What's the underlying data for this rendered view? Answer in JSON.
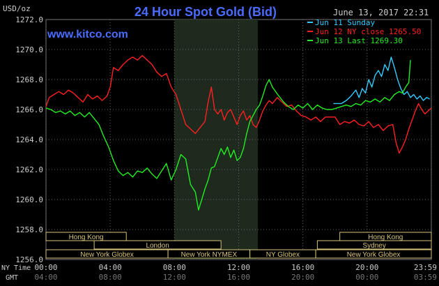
{
  "chart_data": {
    "type": "line",
    "title": "24 Hour Spot Gold (Bid)",
    "watermark": "www.kitco.com",
    "timestamp": "June 13, 2017 22:31",
    "y_unit_label": "USD/oz",
    "ylim": [
      1256.0,
      1272.0
    ],
    "y_ticks": [
      "1256.0",
      "1258.0",
      "1260.0",
      "1262.0",
      "1264.0",
      "1266.0",
      "1268.0",
      "1270.0",
      "1272.0"
    ],
    "x_range_hours": [
      0,
      24
    ],
    "x_row1_label": "NY Time",
    "x_row2_label": "GMT",
    "x_ticks_ny": [
      "00:00",
      "04:00",
      "08:00",
      "12:00",
      "16:00",
      "20:00",
      "23:59"
    ],
    "x_ticks_gmt": [
      "04:00",
      "08:00",
      "12:00",
      "16:00",
      "20:00",
      "00:00",
      "03:59"
    ],
    "shaded_region_hours": [
      8.0,
      13.2
    ],
    "legend": [
      {
        "label": "Jun 11 Sunday",
        "color": "#33ccff"
      },
      {
        "label": "Jun 12 NY close 1265.50",
        "color": "#ff2020"
      },
      {
        "label": "Jun 13 Last 1269.30",
        "color": "#22ee22"
      }
    ],
    "series": [
      {
        "name": "Jun 11 Sunday",
        "color": "#33ccff",
        "points": [
          [
            17.9,
            1266.4
          ],
          [
            18.4,
            1266.4
          ],
          [
            18.7,
            1266.6
          ],
          [
            19.0,
            1266.9
          ],
          [
            19.3,
            1267.3
          ],
          [
            19.5,
            1266.8
          ],
          [
            19.7,
            1267.4
          ],
          [
            19.9,
            1267.1
          ],
          [
            20.1,
            1268.0
          ],
          [
            20.3,
            1267.5
          ],
          [
            20.5,
            1268.3
          ],
          [
            20.7,
            1268.6
          ],
          [
            20.9,
            1268.2
          ],
          [
            21.1,
            1269.0
          ],
          [
            21.3,
            1268.6
          ],
          [
            21.5,
            1269.5
          ],
          [
            21.7,
            1268.8
          ],
          [
            21.9,
            1268.0
          ],
          [
            22.1,
            1267.4
          ],
          [
            22.3,
            1267.0
          ],
          [
            22.5,
            1267.2
          ],
          [
            22.7,
            1266.8
          ],
          [
            22.9,
            1267.0
          ],
          [
            23.1,
            1266.7
          ],
          [
            23.3,
            1266.9
          ],
          [
            23.5,
            1266.6
          ],
          [
            23.7,
            1266.8
          ],
          [
            23.9,
            1266.7
          ]
        ]
      },
      {
        "name": "Jun 12 NY close 1265.50",
        "color": "#ff2020",
        "points": [
          [
            0.0,
            1266.2
          ],
          [
            0.2,
            1266.8
          ],
          [
            0.5,
            1267.0
          ],
          [
            0.8,
            1267.2
          ],
          [
            1.1,
            1267.0
          ],
          [
            1.4,
            1267.3
          ],
          [
            1.7,
            1267.1
          ],
          [
            2.0,
            1266.8
          ],
          [
            2.3,
            1266.5
          ],
          [
            2.6,
            1267.0
          ],
          [
            2.9,
            1266.7
          ],
          [
            3.2,
            1266.9
          ],
          [
            3.5,
            1266.6
          ],
          [
            3.8,
            1266.9
          ],
          [
            4.0,
            1267.5
          ],
          [
            4.2,
            1268.8
          ],
          [
            4.5,
            1268.6
          ],
          [
            4.8,
            1269.0
          ],
          [
            5.1,
            1269.3
          ],
          [
            5.4,
            1269.5
          ],
          [
            5.7,
            1269.3
          ],
          [
            6.0,
            1269.6
          ],
          [
            6.3,
            1269.3
          ],
          [
            6.6,
            1269.0
          ],
          [
            6.9,
            1268.5
          ],
          [
            7.2,
            1268.2
          ],
          [
            7.5,
            1268.4
          ],
          [
            7.8,
            1267.5
          ],
          [
            8.1,
            1267.0
          ],
          [
            8.4,
            1266.0
          ],
          [
            8.7,
            1265.0
          ],
          [
            9.0,
            1264.7
          ],
          [
            9.3,
            1264.4
          ],
          [
            9.6,
            1264.8
          ],
          [
            9.9,
            1265.2
          ],
          [
            10.1,
            1266.5
          ],
          [
            10.3,
            1267.5
          ],
          [
            10.5,
            1266.0
          ],
          [
            10.7,
            1265.7
          ],
          [
            10.9,
            1266.0
          ],
          [
            11.1,
            1265.3
          ],
          [
            11.3,
            1265.8
          ],
          [
            11.5,
            1266.0
          ],
          [
            11.7,
            1265.5
          ],
          [
            11.9,
            1265.0
          ],
          [
            12.1,
            1265.6
          ],
          [
            12.3,
            1265.9
          ],
          [
            12.5,
            1265.3
          ],
          [
            12.7,
            1265.6
          ],
          [
            12.9,
            1265.0
          ],
          [
            13.1,
            1264.8
          ],
          [
            13.3,
            1265.3
          ],
          [
            13.5,
            1265.9
          ],
          [
            13.7,
            1266.3
          ],
          [
            13.9,
            1266.6
          ],
          [
            14.1,
            1266.4
          ],
          [
            14.4,
            1266.8
          ],
          [
            14.7,
            1266.5
          ],
          [
            15.0,
            1266.2
          ],
          [
            15.3,
            1266.3
          ],
          [
            15.6,
            1265.9
          ],
          [
            15.9,
            1265.6
          ],
          [
            16.2,
            1265.5
          ],
          [
            16.5,
            1265.3
          ],
          [
            16.8,
            1265.5
          ],
          [
            17.1,
            1265.2
          ],
          [
            17.4,
            1265.5
          ],
          [
            17.7,
            1265.5
          ],
          [
            18.0,
            1265.5
          ],
          [
            18.3,
            1265.0
          ],
          [
            18.6,
            1265.2
          ],
          [
            18.9,
            1265.1
          ],
          [
            19.2,
            1265.3
          ],
          [
            19.5,
            1265.0
          ],
          [
            19.8,
            1264.9
          ],
          [
            20.1,
            1265.2
          ],
          [
            20.4,
            1264.8
          ],
          [
            20.7,
            1265.0
          ],
          [
            21.0,
            1264.6
          ],
          [
            21.3,
            1264.9
          ],
          [
            21.6,
            1265.0
          ],
          [
            21.8,
            1263.8
          ],
          [
            22.0,
            1263.1
          ],
          [
            22.2,
            1263.5
          ],
          [
            22.4,
            1264.0
          ],
          [
            22.6,
            1264.7
          ],
          [
            22.8,
            1265.3
          ],
          [
            23.0,
            1265.9
          ],
          [
            23.2,
            1266.4
          ],
          [
            23.4,
            1266.0
          ],
          [
            23.6,
            1265.7
          ],
          [
            23.8,
            1265.9
          ],
          [
            23.99,
            1266.1
          ]
        ]
      },
      {
        "name": "Jun 13 Last 1269.30",
        "color": "#22ee22",
        "points": [
          [
            0.0,
            1266.1
          ],
          [
            0.3,
            1266.0
          ],
          [
            0.6,
            1265.8
          ],
          [
            0.9,
            1265.9
          ],
          [
            1.2,
            1265.7
          ],
          [
            1.5,
            1265.9
          ],
          [
            1.8,
            1265.6
          ],
          [
            2.1,
            1265.8
          ],
          [
            2.4,
            1265.5
          ],
          [
            2.7,
            1265.8
          ],
          [
            3.0,
            1265.4
          ],
          [
            3.3,
            1265.0
          ],
          [
            3.6,
            1264.2
          ],
          [
            3.9,
            1263.5
          ],
          [
            4.2,
            1262.6
          ],
          [
            4.5,
            1261.9
          ],
          [
            4.8,
            1261.6
          ],
          [
            5.1,
            1261.8
          ],
          [
            5.4,
            1261.5
          ],
          [
            5.7,
            1261.9
          ],
          [
            6.0,
            1261.8
          ],
          [
            6.3,
            1262.1
          ],
          [
            6.6,
            1261.7
          ],
          [
            6.9,
            1261.4
          ],
          [
            7.2,
            1261.9
          ],
          [
            7.5,
            1262.4
          ],
          [
            7.8,
            1261.3
          ],
          [
            8.1,
            1262.0
          ],
          [
            8.4,
            1263.0
          ],
          [
            8.7,
            1262.7
          ],
          [
            9.0,
            1261.0
          ],
          [
            9.3,
            1260.5
          ],
          [
            9.5,
            1259.3
          ],
          [
            9.7,
            1260.0
          ],
          [
            9.9,
            1260.7
          ],
          [
            10.1,
            1261.3
          ],
          [
            10.3,
            1262.1
          ],
          [
            10.5,
            1262.2
          ],
          [
            10.7,
            1262.8
          ],
          [
            10.9,
            1263.4
          ],
          [
            11.1,
            1263.0
          ],
          [
            11.3,
            1263.5
          ],
          [
            11.5,
            1262.8
          ],
          [
            11.7,
            1263.3
          ],
          [
            11.9,
            1262.6
          ],
          [
            12.1,
            1262.8
          ],
          [
            12.3,
            1263.4
          ],
          [
            12.5,
            1264.4
          ],
          [
            12.7,
            1265.2
          ],
          [
            12.9,
            1265.6
          ],
          [
            13.1,
            1266.0
          ],
          [
            13.3,
            1266.3
          ],
          [
            13.5,
            1266.9
          ],
          [
            13.7,
            1267.6
          ],
          [
            13.9,
            1268.0
          ],
          [
            14.1,
            1267.5
          ],
          [
            14.3,
            1267.2
          ],
          [
            14.5,
            1266.9
          ],
          [
            14.8,
            1266.5
          ],
          [
            15.1,
            1266.2
          ],
          [
            15.4,
            1266.0
          ],
          [
            15.7,
            1266.3
          ],
          [
            16.0,
            1266.1
          ],
          [
            16.3,
            1266.4
          ],
          [
            16.6,
            1266.0
          ],
          [
            16.9,
            1266.3
          ],
          [
            17.2,
            1266.1
          ],
          [
            17.5,
            1266.0
          ],
          [
            17.8,
            1266.0
          ],
          [
            18.1,
            1266.1
          ],
          [
            18.4,
            1266.2
          ],
          [
            18.7,
            1266.3
          ],
          [
            19.0,
            1266.2
          ],
          [
            19.3,
            1266.4
          ],
          [
            19.6,
            1266.3
          ],
          [
            19.9,
            1266.6
          ],
          [
            20.2,
            1266.5
          ],
          [
            20.5,
            1266.7
          ],
          [
            20.8,
            1266.5
          ],
          [
            21.1,
            1266.8
          ],
          [
            21.4,
            1266.6
          ],
          [
            21.7,
            1267.0
          ],
          [
            22.0,
            1267.2
          ],
          [
            22.2,
            1267.1
          ],
          [
            22.4,
            1267.5
          ],
          [
            22.6,
            1267.8
          ],
          [
            22.7,
            1269.3
          ]
        ]
      }
    ],
    "markets": [
      {
        "label": "Hong Kong",
        "start": 0.0,
        "end": 5.0,
        "row": 1
      },
      {
        "label": "Hong Kong",
        "start": 18.3,
        "end": 24.0,
        "row": 1
      },
      {
        "label": "London",
        "start": 3.0,
        "end": 10.9,
        "row": 2
      },
      {
        "label": "Sydney",
        "start": 16.9,
        "end": 24.0,
        "row": 2
      },
      {
        "label": "New York Globex",
        "start": 0.0,
        "end": 7.6,
        "row": 3
      },
      {
        "label": "New York NYMEX",
        "start": 7.6,
        "end": 12.7,
        "row": 3
      },
      {
        "label": "NY Globex",
        "start": 12.7,
        "end": 16.8,
        "row": 3
      },
      {
        "label": "New York Globex",
        "start": 16.8,
        "end": 24.0,
        "row": 3
      }
    ]
  }
}
